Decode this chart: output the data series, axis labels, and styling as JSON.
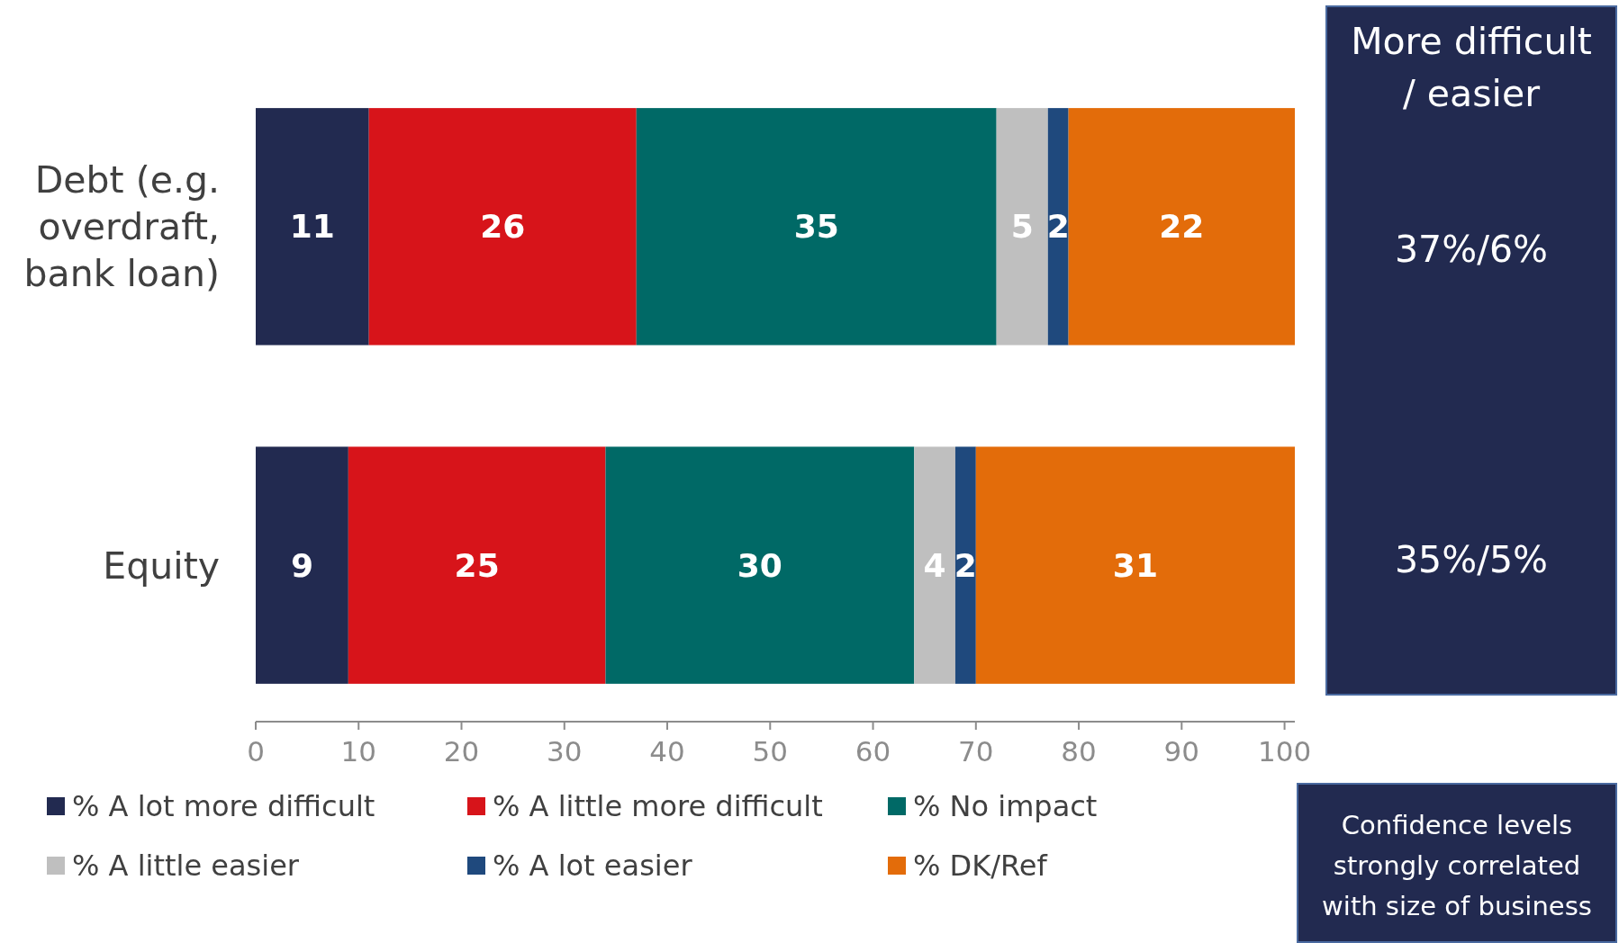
{
  "chart_data": {
    "type": "bar",
    "orientation": "horizontal",
    "stacked": true,
    "categories": [
      "Debt (e.g. overdraft, bank loan)",
      "Equity"
    ],
    "series": [
      {
        "name": "% A lot more difficult",
        "color": "#222a50",
        "values": [
          11,
          9
        ]
      },
      {
        "name": "% A little more difficult",
        "color": "#d7141a",
        "values": [
          26,
          25
        ]
      },
      {
        "name": "% No impact",
        "color": "#006966",
        "values": [
          35,
          30
        ]
      },
      {
        "name": "% A little easier",
        "color": "#bfbfbf",
        "values": [
          5,
          4
        ]
      },
      {
        "name": "% A lot easier",
        "color": "#1f497d",
        "values": [
          2,
          2
        ]
      },
      {
        "name": "% DK/Ref",
        "color": "#e36c0a",
        "values": [
          22,
          31
        ]
      }
    ],
    "xlim": [
      0,
      101
    ],
    "xticks": [
      0,
      10,
      20,
      30,
      40,
      50,
      60,
      70,
      80,
      90,
      100
    ],
    "data_labels": true,
    "legend": "bottom",
    "annotations": [
      "More difficult / easier",
      "37%/6%",
      "35%/5%",
      "Confidence levels strongly correlated with size of business"
    ]
  }
}
